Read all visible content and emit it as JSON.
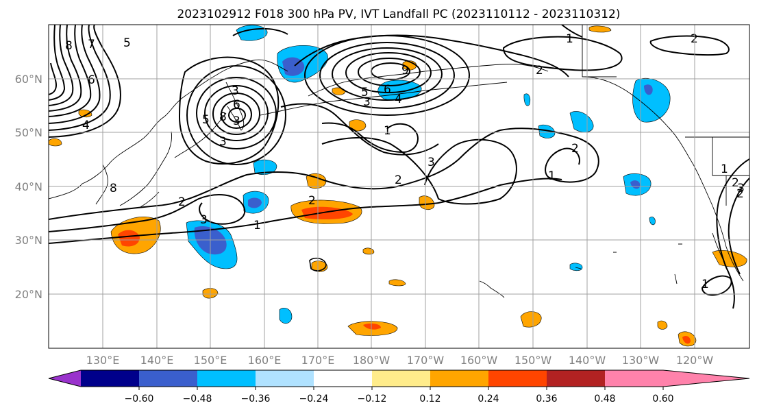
{
  "title": "2023102912 F018 300 hPa PV, IVT Landfall PC (2023110112 - 2023110312)",
  "map": {
    "lat_labels": [
      "60°N",
      "50°N",
      "40°N",
      "30°N",
      "20°N"
    ],
    "lon_labels": [
      "130°E",
      "140°E",
      "150°E",
      "160°E",
      "170°E",
      "180°W",
      "170°W",
      "160°W",
      "150°W",
      "140°W",
      "130°W",
      "120°W"
    ],
    "contour_labels": [
      "8",
      "7",
      "5",
      "4",
      "6",
      "5",
      "3",
      "3",
      "6",
      "8",
      "9",
      "6",
      "5",
      "4",
      "3",
      "1",
      "2",
      "2",
      "3",
      "2",
      "2",
      "8",
      "1",
      "2",
      "3",
      "1",
      "2",
      "1",
      "2",
      "3",
      "1",
      "3",
      "1",
      "2"
    ]
  },
  "colorbar": {
    "colors": [
      "#9932CC",
      "#00008B",
      "#3A5FCD",
      "#00BFFF",
      "#B0E2FF",
      "#FFFFFF",
      "#FFEC8B",
      "#FFA500",
      "#FF4500",
      "#B22222",
      "#FF82AB"
    ],
    "tick_labels": [
      "−0.60",
      "−0.48",
      "−0.36",
      "−0.24",
      "−0.12",
      "0.12",
      "0.24",
      "0.36",
      "0.48",
      "0.60"
    ]
  }
}
